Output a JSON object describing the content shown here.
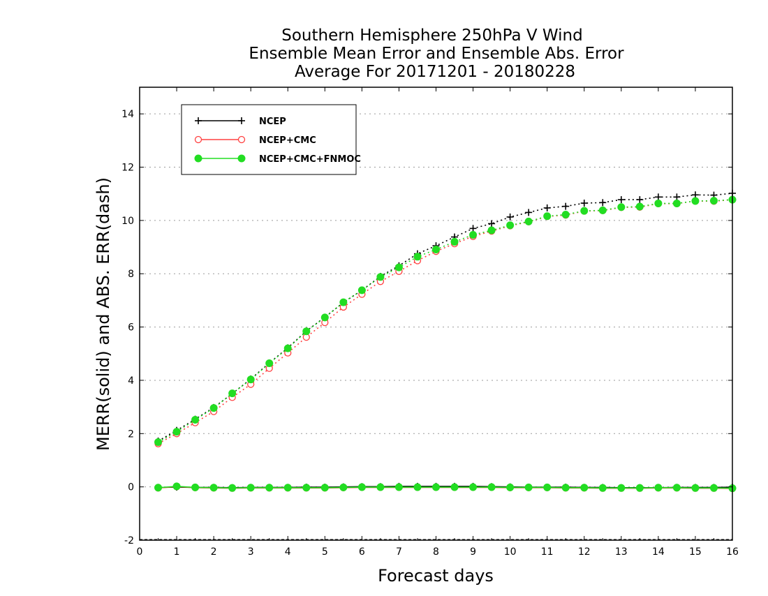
{
  "chart_data": {
    "type": "line",
    "title": [
      "Southern Hemisphere 250hPa V Wind",
      "Ensemble Mean Error and Ensemble Abs. Error",
      "Average For 20171201 - 20180228"
    ],
    "xlabel": "Forecast days",
    "ylabel": "MERR(solid) and ABS. ERR(dash)",
    "xlim": [
      0,
      16
    ],
    "ylim": [
      -2,
      15
    ],
    "x_ticks": [
      "0",
      "1",
      "2",
      "3",
      "4",
      "5",
      "6",
      "7",
      "8",
      "9",
      "10",
      "11",
      "12",
      "13",
      "14",
      "15",
      "16"
    ],
    "y_ticks": [
      "-2",
      "0",
      "2",
      "4",
      "6",
      "8",
      "10",
      "12",
      "14"
    ],
    "grid": "horizontal dotted",
    "legend_position": "top-left",
    "x": [
      0.5,
      1,
      1.5,
      2,
      2.5,
      3,
      3.5,
      4,
      4.5,
      5,
      5.5,
      6,
      6.5,
      7,
      7.5,
      8,
      8.5,
      9,
      9.5,
      10,
      10.5,
      11,
      11.5,
      12,
      12.5,
      13,
      13.5,
      14,
      14.5,
      15,
      15.5,
      16
    ],
    "series": [
      {
        "name": "NCEP",
        "color": "#000000",
        "marker": "plus",
        "abs_error": [
          1.72,
          2.12,
          2.54,
          2.98,
          3.5,
          4.05,
          4.65,
          5.22,
          5.85,
          6.37,
          6.92,
          7.38,
          7.9,
          8.3,
          8.75,
          9.05,
          9.38,
          9.7,
          9.88,
          10.13,
          10.3,
          10.47,
          10.53,
          10.65,
          10.67,
          10.78,
          10.78,
          10.88,
          10.88,
          10.96,
          10.95,
          11.02
        ],
        "mean_error": [
          -0.02,
          -0.01,
          -0.02,
          -0.02,
          -0.03,
          -0.02,
          -0.02,
          -0.02,
          -0.01,
          -0.01,
          0.0,
          0.01,
          0.01,
          0.02,
          0.02,
          0.02,
          0.02,
          0.02,
          0.01,
          0.0,
          -0.01,
          -0.01,
          -0.01,
          -0.02,
          -0.02,
          -0.03,
          -0.03,
          -0.03,
          -0.02,
          -0.02,
          -0.02,
          -0.01
        ]
      },
      {
        "name": "NCEP+CMC",
        "color": "#ff4040",
        "marker": "open-circle",
        "abs_error": [
          1.62,
          2.0,
          2.41,
          2.83,
          3.36,
          3.85,
          4.45,
          5.03,
          5.62,
          6.17,
          6.75,
          7.23,
          7.71,
          8.09,
          8.49,
          8.84,
          9.13,
          9.4,
          9.6,
          9.8,
          9.95,
          10.15,
          10.2,
          10.35,
          10.37,
          10.49,
          10.5,
          10.63,
          10.63,
          10.73,
          10.72,
          10.78
        ],
        "mean_error": [
          -0.04,
          0.01,
          -0.03,
          -0.04,
          -0.05,
          -0.04,
          -0.04,
          -0.04,
          -0.04,
          -0.04,
          -0.03,
          -0.02,
          -0.02,
          -0.02,
          -0.02,
          -0.02,
          -0.02,
          -0.02,
          -0.02,
          -0.03,
          -0.03,
          -0.03,
          -0.04,
          -0.04,
          -0.05,
          -0.05,
          -0.05,
          -0.04,
          -0.04,
          -0.05,
          -0.05,
          -0.06
        ]
      },
      {
        "name": "NCEP+CMC+FNMOC",
        "color": "#22dd22",
        "marker": "filled-circle",
        "abs_error": [
          1.68,
          2.07,
          2.52,
          2.96,
          3.51,
          4.03,
          4.64,
          5.2,
          5.84,
          6.36,
          6.93,
          7.38,
          7.88,
          8.24,
          8.64,
          8.91,
          9.2,
          9.46,
          9.63,
          9.82,
          9.96,
          10.16,
          10.22,
          10.36,
          10.38,
          10.5,
          10.52,
          10.64,
          10.64,
          10.73,
          10.74,
          10.78
        ],
        "mean_error": [
          -0.03,
          0.02,
          -0.02,
          -0.03,
          -0.04,
          -0.03,
          -0.03,
          -0.03,
          -0.03,
          -0.03,
          -0.02,
          -0.01,
          -0.01,
          -0.01,
          -0.01,
          -0.01,
          -0.01,
          -0.01,
          -0.01,
          -0.02,
          -0.02,
          -0.02,
          -0.03,
          -0.03,
          -0.04,
          -0.04,
          -0.04,
          -0.03,
          -0.03,
          -0.04,
          -0.04,
          -0.05
        ]
      }
    ]
  }
}
